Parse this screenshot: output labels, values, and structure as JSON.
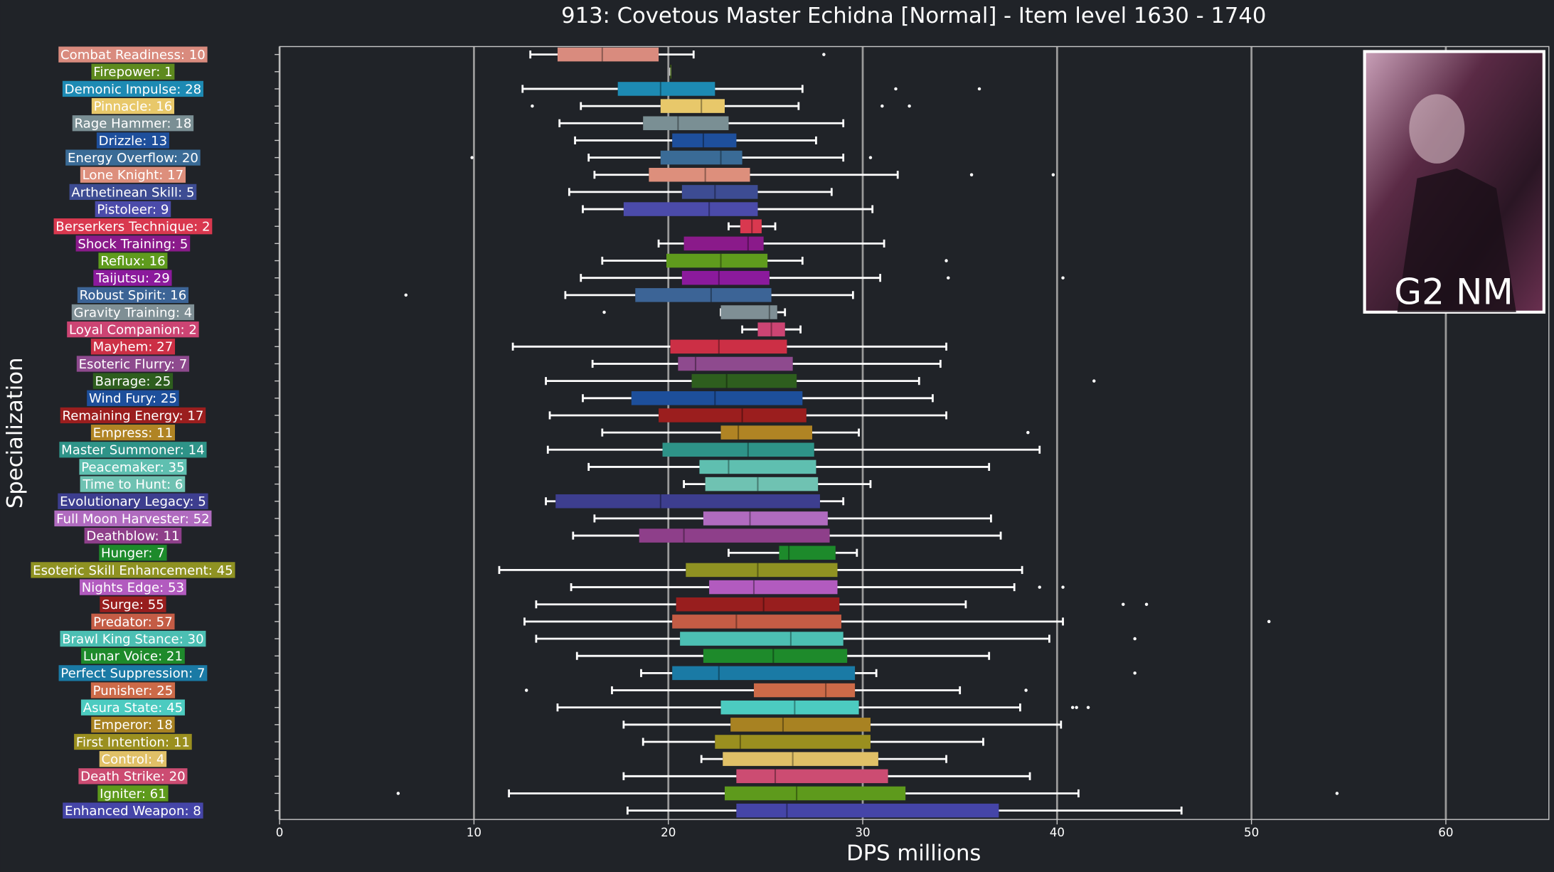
{
  "chart_data": {
    "type": "boxplot",
    "title": "913: Covetous Master Echidna [Normal] - Item level 1630 - 1740",
    "xlabel": "DPS millions",
    "ylabel": "Specialization",
    "image_caption": "G2 NM",
    "xlim": [
      0,
      65.3
    ],
    "xticks": [
      0,
      10,
      20,
      30,
      40,
      50,
      60
    ],
    "grid": true,
    "boxes": [
      {
        "label": "Combat Readiness: 10",
        "color": "#d98b7e",
        "whislo": 12.9,
        "q1": 14.3,
        "med": 16.6,
        "q3": 19.5,
        "whishi": 21.3,
        "fliers": [
          28.0
        ]
      },
      {
        "label": "Firepower: 1",
        "color": "#5e8a1e",
        "whislo": 20.1,
        "q1": 20.1,
        "med": 20.1,
        "q3": 20.1,
        "whishi": 20.1,
        "fliers": []
      },
      {
        "label": "Demonic Impulse: 28",
        "color": "#1d8ab3",
        "whislo": 12.5,
        "q1": 17.4,
        "med": 19.6,
        "q3": 22.4,
        "whishi": 26.9,
        "fliers": [
          31.7,
          36.0
        ]
      },
      {
        "label": "Pinnacle: 16",
        "color": "#e8c86a",
        "whislo": 15.5,
        "q1": 19.6,
        "med": 21.7,
        "q3": 22.9,
        "whishi": 26.7,
        "fliers": [
          13.0,
          31.0,
          32.4
        ]
      },
      {
        "label": "Rage Hammer: 18",
        "color": "#7a8f94",
        "whislo": 14.4,
        "q1": 18.7,
        "med": 20.5,
        "q3": 23.1,
        "whishi": 29.0,
        "fliers": []
      },
      {
        "label": "Drizzle: 13",
        "color": "#1e4f9c",
        "whislo": 15.2,
        "q1": 20.2,
        "med": 21.8,
        "q3": 23.5,
        "whishi": 27.6,
        "fliers": []
      },
      {
        "label": "Energy Overflow: 20",
        "color": "#3a6b96",
        "whislo": 15.9,
        "q1": 19.6,
        "med": 22.7,
        "q3": 23.8,
        "whishi": 29.0,
        "fliers": [
          9.9,
          30.4
        ]
      },
      {
        "label": "Lone Knight: 17",
        "color": "#dd8f7c",
        "whislo": 16.2,
        "q1": 19.0,
        "med": 21.9,
        "q3": 24.2,
        "whishi": 31.8,
        "fliers": [
          35.6,
          39.8
        ]
      },
      {
        "label": "Arthetinean Skill: 5",
        "color": "#3d4c93",
        "whislo": 14.9,
        "q1": 20.7,
        "med": 22.4,
        "q3": 24.6,
        "whishi": 28.4,
        "fliers": []
      },
      {
        "label": "Pistoleer: 9",
        "color": "#4b4baa",
        "whislo": 15.6,
        "q1": 17.7,
        "med": 22.1,
        "q3": 24.6,
        "whishi": 30.5,
        "fliers": []
      },
      {
        "label": "Berserkers Technique: 2",
        "color": "#d9384f",
        "whislo": 23.1,
        "q1": 23.7,
        "med": 24.3,
        "q3": 24.8,
        "whishi": 25.5,
        "fliers": []
      },
      {
        "label": "Shock Training: 5",
        "color": "#8a1a8a",
        "whislo": 19.5,
        "q1": 20.8,
        "med": 24.1,
        "q3": 24.9,
        "whishi": 31.1,
        "fliers": []
      },
      {
        "label": "Reflux: 16",
        "color": "#5f9b1d",
        "whislo": 16.6,
        "q1": 19.9,
        "med": 22.7,
        "q3": 25.1,
        "whishi": 26.9,
        "fliers": [
          34.3
        ]
      },
      {
        "label": "Taijutsu: 29",
        "color": "#8b1a9c",
        "whislo": 15.5,
        "q1": 20.7,
        "med": 22.6,
        "q3": 25.2,
        "whishi": 30.9,
        "fliers": [
          34.4,
          40.3
        ]
      },
      {
        "label": "Robust Spirit: 16",
        "color": "#3c6496",
        "whislo": 14.7,
        "q1": 18.3,
        "med": 22.2,
        "q3": 25.3,
        "whishi": 29.5,
        "fliers": [
          6.5
        ]
      },
      {
        "label": "Gravity Training: 4",
        "color": "#7f8f95",
        "whislo": 22.7,
        "q1": 22.7,
        "med": 25.2,
        "q3": 25.6,
        "whishi": 26.0,
        "fliers": [
          16.7
        ]
      },
      {
        "label": "Loyal Companion: 2",
        "color": "#cc4473",
        "whislo": 23.8,
        "q1": 24.6,
        "med": 25.3,
        "q3": 26.0,
        "whishi": 26.8,
        "fliers": []
      },
      {
        "label": "Mayhem: 27",
        "color": "#cc2f45",
        "whislo": 12.0,
        "q1": 20.1,
        "med": 22.6,
        "q3": 26.1,
        "whishi": 34.3,
        "fliers": []
      },
      {
        "label": "Esoteric Flurry: 7",
        "color": "#8e4a8e",
        "whislo": 16.1,
        "q1": 20.5,
        "med": 21.4,
        "q3": 26.4,
        "whishi": 34.0,
        "fliers": []
      },
      {
        "label": "Barrage: 25",
        "color": "#2e5e1e",
        "whislo": 13.7,
        "q1": 21.2,
        "med": 23.0,
        "q3": 26.6,
        "whishi": 32.9,
        "fliers": [
          41.9
        ]
      },
      {
        "label": "Wind Fury: 25",
        "color": "#1d4f9b",
        "whislo": 15.6,
        "q1": 18.1,
        "med": 22.4,
        "q3": 26.9,
        "whishi": 33.6,
        "fliers": []
      },
      {
        "label": "Remaining Energy: 17",
        "color": "#9b1e1e",
        "whislo": 13.9,
        "q1": 19.5,
        "med": 23.8,
        "q3": 27.1,
        "whishi": 34.3,
        "fliers": []
      },
      {
        "label": "Empress: 11",
        "color": "#b08424",
        "whislo": 16.6,
        "q1": 22.7,
        "med": 23.6,
        "q3": 27.4,
        "whishi": 29.8,
        "fliers": [
          38.5
        ]
      },
      {
        "label": "Master Summoner: 14",
        "color": "#2e9388",
        "whislo": 13.8,
        "q1": 19.7,
        "med": 24.1,
        "q3": 27.5,
        "whishi": 39.1,
        "fliers": []
      },
      {
        "label": "Peacemaker: 35",
        "color": "#5fbfb0",
        "whislo": 15.9,
        "q1": 21.6,
        "med": 23.1,
        "q3": 27.6,
        "whishi": 36.5,
        "fliers": []
      },
      {
        "label": "Time to Hunt: 6",
        "color": "#6fc2b2",
        "whislo": 20.8,
        "q1": 21.9,
        "med": 24.6,
        "q3": 27.7,
        "whishi": 30.4,
        "fliers": []
      },
      {
        "label": "Evolutionary Legacy: 5",
        "color": "#3d3e8f",
        "whislo": 13.7,
        "q1": 14.2,
        "med": 19.6,
        "q3": 27.8,
        "whishi": 29.0,
        "fliers": []
      },
      {
        "label": "Full Moon Harvester: 52",
        "color": "#b06bbf",
        "whislo": 16.2,
        "q1": 21.8,
        "med": 24.2,
        "q3": 28.2,
        "whishi": 36.6,
        "fliers": []
      },
      {
        "label": "Deathblow: 11",
        "color": "#8e3f8a",
        "whislo": 15.1,
        "q1": 18.5,
        "med": 20.8,
        "q3": 28.3,
        "whishi": 37.1,
        "fliers": []
      },
      {
        "label": "Hunger: 7",
        "color": "#1d8a2b",
        "whislo": 23.1,
        "q1": 25.7,
        "med": 26.2,
        "q3": 28.6,
        "whishi": 29.7,
        "fliers": []
      },
      {
        "label": "Esoteric Skill Enhancement: 45",
        "color": "#8f9222",
        "whislo": 11.3,
        "q1": 20.9,
        "med": 24.6,
        "q3": 28.7,
        "whishi": 38.2,
        "fliers": []
      },
      {
        "label": "Nights Edge: 53",
        "color": "#b25bbf",
        "whislo": 15.0,
        "q1": 22.1,
        "med": 24.4,
        "q3": 28.7,
        "whishi": 37.8,
        "fliers": [
          39.1,
          40.3
        ]
      },
      {
        "label": "Surge: 55",
        "color": "#981e1e",
        "whislo": 13.2,
        "q1": 20.4,
        "med": 24.9,
        "q3": 28.8,
        "whishi": 35.3,
        "fliers": [
          43.4,
          44.6
        ]
      },
      {
        "label": "Predator: 57",
        "color": "#c45c45",
        "whislo": 12.6,
        "q1": 20.2,
        "med": 23.5,
        "q3": 28.9,
        "whishi": 40.3,
        "fliers": [
          50.9
        ]
      },
      {
        "label": "Brawl King Stance: 30",
        "color": "#4cbfb3",
        "whislo": 13.2,
        "q1": 20.6,
        "med": 26.3,
        "q3": 29.0,
        "whishi": 39.6,
        "fliers": [
          44.0
        ]
      },
      {
        "label": "Lunar Voice: 21",
        "color": "#1e8a2b",
        "whislo": 15.3,
        "q1": 21.8,
        "med": 25.4,
        "q3": 29.2,
        "whishi": 36.5,
        "fliers": []
      },
      {
        "label": "Perfect Suppression: 7",
        "color": "#1a7aa5",
        "whislo": 18.6,
        "q1": 20.2,
        "med": 22.6,
        "q3": 29.6,
        "whishi": 30.7,
        "fliers": [
          44.0
        ]
      },
      {
        "label": "Punisher: 25",
        "color": "#cc6a48",
        "whislo": 17.1,
        "q1": 24.4,
        "med": 28.1,
        "q3": 29.6,
        "whishi": 35.0,
        "fliers": [
          12.7,
          38.4
        ]
      },
      {
        "label": "Asura State: 45",
        "color": "#4ccbc0",
        "whislo": 14.3,
        "q1": 22.7,
        "med": 26.5,
        "q3": 29.8,
        "whishi": 38.1,
        "fliers": [
          40.8,
          41.0,
          41.6
        ]
      },
      {
        "label": "Emperor: 18",
        "color": "#a88222",
        "whislo": 17.7,
        "q1": 23.2,
        "med": 25.9,
        "q3": 30.4,
        "whishi": 40.2,
        "fliers": []
      },
      {
        "label": "First Intention: 11",
        "color": "#9a8f1f",
        "whislo": 18.7,
        "q1": 22.4,
        "med": 23.7,
        "q3": 30.4,
        "whishi": 36.2,
        "fliers": []
      },
      {
        "label": "Control: 4",
        "color": "#e0c067",
        "whislo": 21.7,
        "q1": 22.8,
        "med": 26.4,
        "q3": 30.8,
        "whishi": 34.3,
        "fliers": []
      },
      {
        "label": "Death Strike: 20",
        "color": "#cc4c72",
        "whislo": 17.7,
        "q1": 23.5,
        "med": 25.5,
        "q3": 31.3,
        "whishi": 38.6,
        "fliers": []
      },
      {
        "label": "Igniter: 61",
        "color": "#5e9a1c",
        "whislo": 11.8,
        "q1": 22.9,
        "med": 26.6,
        "q3": 32.2,
        "whishi": 41.1,
        "fliers": [
          6.1,
          54.4
        ]
      },
      {
        "label": "Enhanced Weapon: 8",
        "color": "#4545a8",
        "whislo": 17.9,
        "q1": 23.5,
        "med": 26.1,
        "q3": 37.0,
        "whishi": 46.4,
        "fliers": []
      }
    ]
  }
}
